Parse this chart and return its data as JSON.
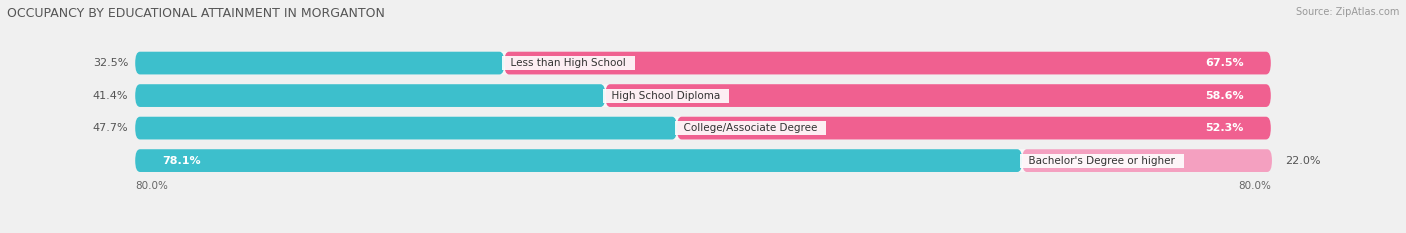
{
  "title": "OCCUPANCY BY EDUCATIONAL ATTAINMENT IN MORGANTON",
  "source": "Source: ZipAtlas.com",
  "categories": [
    "Less than High School",
    "High School Diploma",
    "College/Associate Degree",
    "Bachelor's Degree or higher"
  ],
  "owner_values": [
    32.5,
    41.4,
    47.7,
    78.1
  ],
  "renter_values": [
    67.5,
    58.6,
    52.3,
    22.0
  ],
  "owner_color": "#3dbfcc",
  "renter_color": "#f06090",
  "renter_color_light": "#f4a0c0",
  "total_width": 100.0,
  "axis_label_left": "80.0%",
  "axis_label_right": "80.0%",
  "bg_color": "#f0f0f0",
  "bar_bg_color": "#e0e0e0",
  "row_bg_color": "#f8f8f8",
  "title_fontsize": 9,
  "source_fontsize": 7,
  "bar_height": 0.7,
  "label_fontsize": 8
}
